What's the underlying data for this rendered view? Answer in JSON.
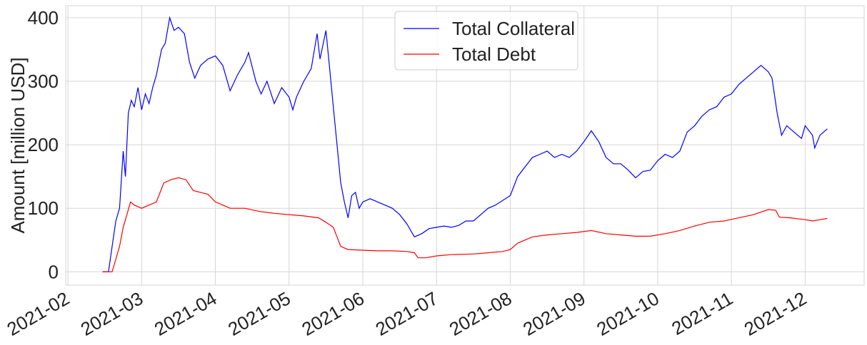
{
  "chart_data": {
    "type": "line",
    "ylabel": "Amount [million USD]",
    "xlim": [
      -0.03,
      10.8
    ],
    "ylim": [
      -21,
      419
    ],
    "xticks": [
      {
        "value": 0,
        "label": "2021-02"
      },
      {
        "value": 1,
        "label": "2021-03"
      },
      {
        "value": 2,
        "label": "2021-04"
      },
      {
        "value": 3,
        "label": "2021-05"
      },
      {
        "value": 4,
        "label": "2021-06"
      },
      {
        "value": 5,
        "label": "2021-07"
      },
      {
        "value": 6,
        "label": "2021-08"
      },
      {
        "value": 7,
        "label": "2021-09"
      },
      {
        "value": 8,
        "label": "2021-10"
      },
      {
        "value": 9,
        "label": "2021-11"
      },
      {
        "value": 10,
        "label": "2021-12"
      }
    ],
    "yticks": [
      0,
      100,
      200,
      300,
      400
    ],
    "grid": true,
    "legend": "upper center",
    "series": [
      {
        "name": "Total Collateral",
        "color": "#0000ff",
        "x": [
          0.47,
          0.55,
          0.6,
          0.65,
          0.7,
          0.75,
          0.78,
          0.82,
          0.86,
          0.9,
          0.95,
          1.0,
          1.05,
          1.1,
          1.15,
          1.2,
          1.27,
          1.32,
          1.38,
          1.44,
          1.5,
          1.58,
          1.65,
          1.72,
          1.8,
          1.9,
          2.0,
          2.1,
          2.2,
          2.3,
          2.4,
          2.45,
          2.55,
          2.62,
          2.7,
          2.8,
          2.9,
          3.0,
          3.05,
          3.1,
          3.2,
          3.3,
          3.38,
          3.42,
          3.5,
          3.55,
          3.6,
          3.65,
          3.7,
          3.75,
          3.8,
          3.85,
          3.9,
          3.95,
          4.0,
          4.1,
          4.2,
          4.3,
          4.4,
          4.5,
          4.6,
          4.65,
          4.7,
          4.8,
          4.9,
          5.0,
          5.1,
          5.2,
          5.3,
          5.4,
          5.5,
          5.6,
          5.7,
          5.8,
          6.0,
          6.1,
          6.2,
          6.3,
          6.4,
          6.5,
          6.6,
          6.7,
          6.8,
          6.9,
          7.0,
          7.1,
          7.2,
          7.3,
          7.4,
          7.5,
          7.6,
          7.7,
          7.8,
          7.9,
          8.0,
          8.1,
          8.2,
          8.3,
          8.4,
          8.5,
          8.6,
          8.7,
          8.8,
          8.9,
          9.0,
          9.1,
          9.2,
          9.3,
          9.4,
          9.5,
          9.55,
          9.62,
          9.68,
          9.75,
          9.85,
          9.95,
          10.0,
          10.1,
          10.13,
          10.2,
          10.3
        ],
        "values": [
          0,
          0,
          40,
          80,
          100,
          190,
          150,
          250,
          270,
          260,
          290,
          255,
          280,
          265,
          290,
          310,
          350,
          360,
          400,
          380,
          385,
          375,
          330,
          305,
          325,
          335,
          340,
          325,
          285,
          310,
          330,
          345,
          300,
          280,
          300,
          265,
          290,
          275,
          255,
          275,
          300,
          320,
          375,
          335,
          380,
          320,
          260,
          200,
          140,
          110,
          85,
          120,
          125,
          100,
          110,
          115,
          110,
          105,
          100,
          90,
          75,
          65,
          55,
          60,
          68,
          70,
          72,
          70,
          73,
          80,
          80,
          90,
          100,
          105,
          120,
          150,
          165,
          180,
          185,
          190,
          180,
          185,
          180,
          190,
          205,
          222,
          205,
          180,
          170,
          170,
          160,
          148,
          158,
          160,
          175,
          185,
          180,
          190,
          220,
          230,
          245,
          255,
          260,
          275,
          280,
          295,
          305,
          315,
          325,
          315,
          305,
          250,
          215,
          230,
          220,
          210,
          230,
          215,
          195,
          215,
          225
        ]
      },
      {
        "name": "Total Debt",
        "color": "#ff0000",
        "x": [
          0.47,
          0.6,
          0.65,
          0.7,
          0.75,
          0.8,
          0.85,
          0.9,
          1.0,
          1.1,
          1.2,
          1.3,
          1.4,
          1.5,
          1.6,
          1.7,
          1.8,
          1.9,
          2.0,
          2.1,
          2.2,
          2.4,
          2.6,
          2.8,
          3.0,
          3.2,
          3.4,
          3.5,
          3.6,
          3.65,
          3.7,
          3.8,
          4.0,
          4.2,
          4.4,
          4.6,
          4.7,
          4.75,
          4.85,
          5.0,
          5.2,
          5.5,
          5.7,
          5.9,
          6.0,
          6.1,
          6.3,
          6.5,
          6.7,
          6.9,
          7.1,
          7.3,
          7.5,
          7.7,
          7.9,
          8.1,
          8.3,
          8.5,
          8.7,
          8.9,
          9.1,
          9.3,
          9.5,
          9.6,
          9.65,
          9.8,
          10.0,
          10.1,
          10.2,
          10.3
        ],
        "values": [
          0,
          0,
          20,
          40,
          70,
          90,
          110,
          105,
          100,
          105,
          110,
          140,
          145,
          148,
          145,
          128,
          125,
          122,
          110,
          105,
          100,
          100,
          95,
          92,
          90,
          88,
          85,
          78,
          70,
          55,
          40,
          35,
          34,
          33,
          33,
          32,
          30,
          22,
          22,
          25,
          27,
          28,
          30,
          32,
          35,
          45,
          55,
          58,
          60,
          62,
          65,
          60,
          58,
          56,
          56,
          60,
          65,
          72,
          78,
          80,
          85,
          90,
          98,
          97,
          86,
          85,
          82,
          80,
          82,
          84
        ]
      }
    ]
  }
}
